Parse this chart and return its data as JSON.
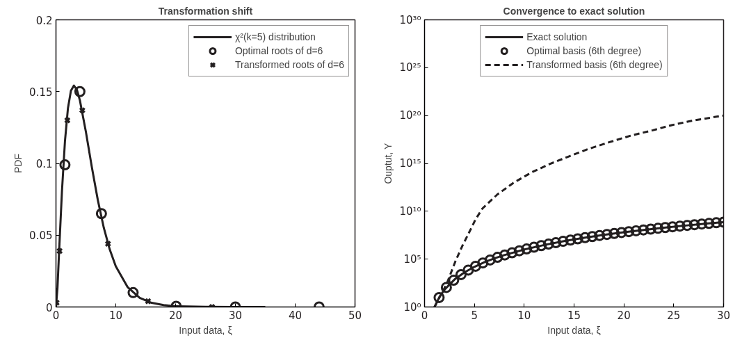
{
  "chart_data": [
    {
      "type": "line",
      "title": "Transformation shift",
      "xlabel": "Input data, ξ",
      "ylabel": "PDF",
      "xlim": [
        0,
        50
      ],
      "ylim": [
        0,
        0.2
      ],
      "xticks": [
        0,
        10,
        20,
        30,
        40,
        50
      ],
      "yticks": [
        0,
        0.05,
        0.1,
        0.15,
        0.2
      ],
      "grid": false,
      "legend": "top right",
      "series": [
        {
          "name": "χ²(k=5) distribution",
          "line_style": "solid",
          "color": "#231f20",
          "x": [
            0,
            0.25,
            0.5,
            1,
            1.5,
            2,
            2.5,
            3,
            3.5,
            4,
            5,
            6,
            7,
            8,
            9,
            10,
            12,
            14,
            16,
            18,
            20,
            25,
            30,
            35
          ],
          "values": [
            0,
            0.0132,
            0.0366,
            0.0807,
            0.1153,
            0.1384,
            0.1506,
            0.1542,
            0.1513,
            0.1439,
            0.122,
            0.0973,
            0.0744,
            0.0551,
            0.0399,
            0.0283,
            0.0137,
            0.0064,
            0.0029,
            0.0013,
            0.0005,
            0.0001,
            0,
            0
          ]
        },
        {
          "name": "Optimal roots of d=6",
          "type": "scatter",
          "marker": "circle",
          "color": "#231f20",
          "x": [
            1.5,
            4.0,
            7.6,
            12.9,
            20.1,
            30.0,
            44.0
          ],
          "values": [
            0.099,
            0.15,
            0.065,
            0.01,
            0.0005,
            0,
            0
          ]
        },
        {
          "name": "Transformed roots of d=6",
          "type": "scatter",
          "marker": "cross",
          "color": "#231f20",
          "x": [
            0.1,
            0.6,
            1.9,
            4.4,
            8.7,
            15.4,
            26.1
          ],
          "values": [
            0.003,
            0.039,
            0.13,
            0.137,
            0.044,
            0.004,
            0
          ]
        }
      ]
    },
    {
      "type": "line",
      "title": "Convergence to exact solution",
      "xlabel": "Input data, ξ",
      "ylabel": "Ouptut, Y",
      "log": "y",
      "xlim": [
        0,
        30
      ],
      "ylim": [
        1,
        1e+30
      ],
      "xticks": [
        0,
        5,
        10,
        15,
        20,
        25,
        30
      ],
      "yticks": [
        {
          "value": 1,
          "label": "10⁰"
        },
        {
          "value": 100000.0,
          "label": "10⁵"
        },
        {
          "value": 10000000000.0,
          "label": "10¹⁰"
        },
        {
          "value": 1000000000000000.0,
          "label": "10¹⁵"
        },
        {
          "value": 1e+20,
          "label": "10²⁰"
        },
        {
          "value": 1e+25,
          "label": "10²⁵"
        },
        {
          "value": 1e+30,
          "label": "10³⁰"
        }
      ],
      "grid": false,
      "legend": "top",
      "series": [
        {
          "name": "Exact solution",
          "line_style": "solid",
          "color": "#231f20",
          "x": [
            1,
            1.5,
            2,
            3,
            4,
            5,
            6,
            7,
            8,
            10,
            12,
            14,
            16,
            18,
            20,
            22,
            24,
            26,
            28,
            30
          ],
          "values": [
            1,
            11.4,
            64,
            729,
            4100,
            15600,
            46700,
            118000,
            262000,
            1000000,
            2990000,
            7530000,
            16800000,
            34000000,
            64000000,
            113000000,
            191000000,
            309000000,
            482000000,
            729000000
          ]
        },
        {
          "name": "Optimal basis (6th degree)",
          "type": "scatter",
          "marker": "circle",
          "color": "#231f20",
          "x": [
            1.46,
            2.19,
            2.92,
            3.66,
            4.39,
            5.12,
            5.85,
            6.58,
            7.32,
            8.05,
            8.78,
            9.51,
            10.24,
            10.98,
            11.71,
            12.44,
            13.17,
            13.9,
            14.64,
            15.37,
            16.1,
            16.83,
            17.56,
            18.3,
            19.03,
            19.76,
            20.49,
            21.22,
            21.96,
            22.69,
            23.42,
            24.15,
            24.88,
            25.62,
            26.35,
            27.08,
            27.81,
            28.54,
            29.27,
            30.0
          ],
          "values": [
            9.7,
            110,
            620,
            2400,
            7200,
            18000,
            40000,
            81000,
            154000,
            272000,
            458000,
            740000,
            1150000,
            1750000,
            2580000,
            3700000,
            5200000,
            7200000,
            9800000,
            13200000,
            17400000,
            22700000,
            29300000,
            37600000,
            47500000,
            59600000,
            74000000,
            91000000,
            112000000,
            136000000,
            165000000,
            199000000,
            237000000,
            283000000,
            335000000,
            394000000,
            462000000,
            540000000,
            630000000,
            730000000
          ]
        },
        {
          "name": "Transformed basis (6th degree)",
          "line_style": "dashed",
          "color": "#231f20",
          "x": [
            1,
            1.5,
            2.2,
            3.1,
            3.8,
            4.5,
            5.1,
            5.8,
            7.3,
            8.9,
            10.7,
            12.6,
            14.6,
            16.5,
            18.5,
            20.7,
            22.9,
            24.8,
            26.8,
            30
          ],
          "values": [
            1,
            10.0,
            230.0,
            60000.0,
            2500000.0,
            70000000.0,
            1300000000.0,
            19000000000.0,
            560000000000.0,
            9000000000000.0,
            110000000000000.0,
            900000000000000.0,
            6000000000000000.0,
            3.4e+16,
            1.6e+17,
            8e+17,
            2.9e+18,
            1e+19,
            2.8e+19,
            1e+20
          ]
        }
      ]
    }
  ]
}
